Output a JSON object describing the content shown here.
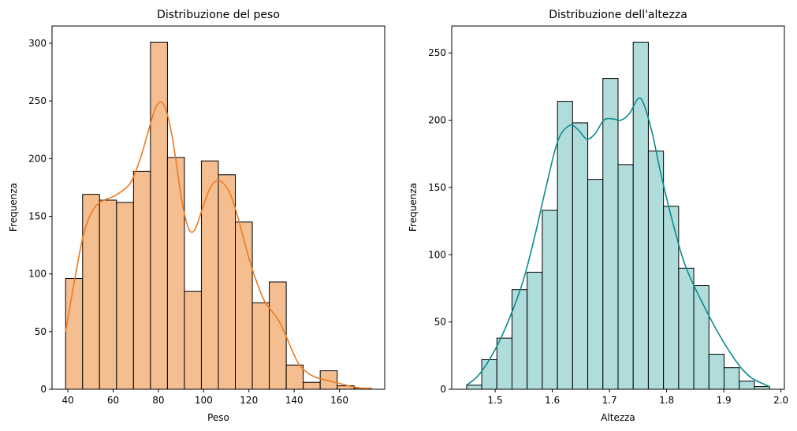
{
  "chart_data": [
    {
      "type": "bar",
      "title": "Distribuzione del peso",
      "xlabel": "Peso",
      "ylabel": "Frequenza",
      "xlim": [
        33,
        180
      ],
      "ylim": [
        0,
        315
      ],
      "xticks": [
        40,
        60,
        80,
        100,
        120,
        140,
        160
      ],
      "yticks": [
        0,
        50,
        100,
        150,
        200,
        250,
        300
      ],
      "bin_edges": [
        39,
        46.5,
        54,
        61.5,
        69,
        76.5,
        84,
        91.5,
        99,
        106.5,
        114,
        121.5,
        129,
        136.5,
        144,
        151.5,
        159,
        166.5,
        174
      ],
      "values": [
        96,
        169,
        164,
        162,
        189,
        301,
        201,
        85,
        198,
        186,
        145,
        75,
        93,
        21,
        6,
        16,
        3,
        1
      ],
      "kde": {
        "x": [
          39,
          43,
          47,
          51,
          55,
          60,
          64,
          68,
          72,
          75,
          78,
          80,
          82,
          84,
          86,
          88,
          90,
          92,
          94,
          96,
          98,
          100,
          103,
          106,
          109,
          112,
          115,
          118,
          121,
          124,
          127,
          130,
          133,
          136,
          139,
          142,
          146,
          150,
          154,
          158,
          162,
          166,
          170,
          174
        ],
        "y": [
          50,
          95,
          135,
          155,
          163,
          167,
          172,
          180,
          200,
          220,
          240,
          248,
          248,
          238,
          220,
          195,
          168,
          148,
          137,
          138,
          148,
          160,
          175,
          181,
          178,
          168,
          150,
          128,
          107,
          90,
          76,
          68,
          60,
          48,
          34,
          22,
          14,
          10,
          8,
          6,
          4,
          2,
          1,
          1
        ]
      },
      "bar_color": "#f4be91",
      "line_color": "#ed7a1f"
    },
    {
      "type": "bar",
      "title": "Distribuzione dell'altezza",
      "xlabel": "Altezza",
      "ylabel": "Frequenza",
      "xlim": [
        1.424,
        2.006
      ],
      "ylim": [
        0,
        270
      ],
      "xticks": [
        "1.5",
        "1.6",
        "1.7",
        "1.8",
        "1.9",
        "2.0"
      ],
      "yticks": [
        0,
        50,
        100,
        150,
        200,
        250
      ],
      "bin_edges": [
        1.45,
        1.4765,
        1.503,
        1.5295,
        1.556,
        1.5825,
        1.609,
        1.6355,
        1.662,
        1.6885,
        1.715,
        1.7415,
        1.768,
        1.7945,
        1.821,
        1.8475,
        1.874,
        1.9005,
        1.927,
        1.9535,
        1.98
      ],
      "values": [
        3,
        22,
        38,
        74,
        87,
        133,
        214,
        198,
        156,
        231,
        167,
        258,
        177,
        136,
        90,
        77,
        26,
        16,
        6,
        2
      ],
      "kde": {
        "x": [
          1.45,
          1.47,
          1.49,
          1.51,
          1.53,
          1.55,
          1.57,
          1.59,
          1.61,
          1.63,
          1.645,
          1.66,
          1.675,
          1.69,
          1.705,
          1.72,
          1.735,
          1.75,
          1.76,
          1.775,
          1.79,
          1.81,
          1.83,
          1.85,
          1.87,
          1.89,
          1.91,
          1.93,
          1.95,
          1.98
        ],
        "y": [
          3,
          10,
          22,
          38,
          58,
          82,
          115,
          152,
          185,
          196,
          193,
          186,
          190,
          200,
          201,
          200,
          205,
          216,
          212,
          190,
          160,
          125,
          95,
          75,
          58,
          42,
          28,
          16,
          8,
          2
        ]
      },
      "bar_color": "#b0dcdc",
      "line_color": "#0b8c8c"
    }
  ]
}
